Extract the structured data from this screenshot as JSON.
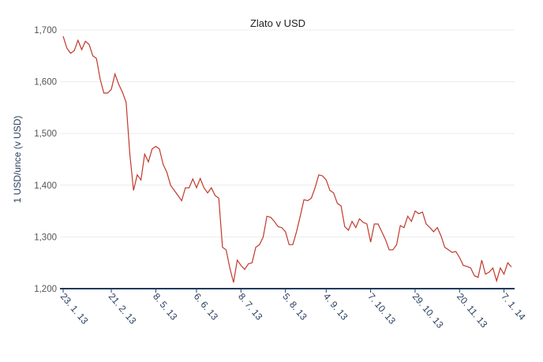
{
  "chart_data": {
    "type": "line",
    "title": "Zlato v USD",
    "y_label": "1 USD/unce (v USD)",
    "categories": [
      "23. 1. 13",
      null,
      null,
      null,
      null,
      null,
      null,
      null,
      null,
      null,
      null,
      null,
      null,
      "21. 2. 13",
      null,
      null,
      null,
      null,
      null,
      null,
      null,
      null,
      null,
      null,
      null,
      "8. 5. 13",
      null,
      null,
      null,
      null,
      null,
      null,
      null,
      null,
      null,
      null,
      "6. 6. 13",
      null,
      null,
      null,
      null,
      null,
      null,
      null,
      null,
      null,
      null,
      null,
      "8. 7. 13",
      null,
      null,
      null,
      null,
      null,
      null,
      null,
      null,
      null,
      null,
      null,
      "5. 8. 13",
      null,
      null,
      null,
      null,
      null,
      null,
      null,
      null,
      null,
      null,
      "4. 9. 13",
      null,
      null,
      null,
      null,
      null,
      null,
      null,
      null,
      null,
      null,
      null,
      "7. 10. 13",
      null,
      null,
      null,
      null,
      null,
      null,
      null,
      null,
      null,
      null,
      null,
      "29. 10. 13",
      null,
      null,
      null,
      null,
      null,
      null,
      null,
      null,
      null,
      null,
      null,
      "20. 11. 13",
      null,
      null,
      null,
      null,
      null,
      null,
      null,
      null,
      null,
      null,
      null,
      "7. 1. 14",
      null,
      null
    ],
    "series": [
      {
        "name": "Zlato",
        "color": "#c0392b",
        "values": [
          1688,
          1665,
          1655,
          1660,
          1680,
          1662,
          1678,
          1672,
          1650,
          1645,
          1605,
          1578,
          1578,
          1585,
          1615,
          1595,
          1580,
          1560,
          1460,
          1390,
          1420,
          1410,
          1460,
          1445,
          1470,
          1475,
          1470,
          1440,
          1425,
          1400,
          1390,
          1380,
          1370,
          1395,
          1395,
          1412,
          1395,
          1413,
          1395,
          1385,
          1395,
          1380,
          1375,
          1280,
          1275,
          1240,
          1212,
          1255,
          1245,
          1237,
          1248,
          1250,
          1280,
          1285,
          1300,
          1340,
          1338,
          1330,
          1320,
          1318,
          1310,
          1285,
          1285,
          1310,
          1340,
          1372,
          1370,
          1375,
          1395,
          1420,
          1418,
          1410,
          1390,
          1385,
          1365,
          1360,
          1320,
          1313,
          1330,
          1318,
          1335,
          1328,
          1325,
          1290,
          1325,
          1325,
          1310,
          1295,
          1275,
          1275,
          1285,
          1322,
          1318,
          1340,
          1330,
          1350,
          1345,
          1348,
          1325,
          1318,
          1310,
          1318,
          1302,
          1280,
          1275,
          1270,
          1272,
          1260,
          1245,
          1243,
          1240,
          1225,
          1222,
          1255,
          1228,
          1232,
          1240,
          1215,
          1240,
          1228,
          1250,
          1242
        ]
      }
    ],
    "ylim": [
      1200,
      1700
    ],
    "yticks": [
      {
        "value": 1200,
        "label": "1,200"
      },
      {
        "value": 1300,
        "label": "1,300"
      },
      {
        "value": 1400,
        "label": "1,400"
      },
      {
        "value": 1500,
        "label": "1,500"
      },
      {
        "value": 1600,
        "label": "1,600"
      },
      {
        "value": 1700,
        "label": "1,700"
      }
    ],
    "grid": true
  }
}
